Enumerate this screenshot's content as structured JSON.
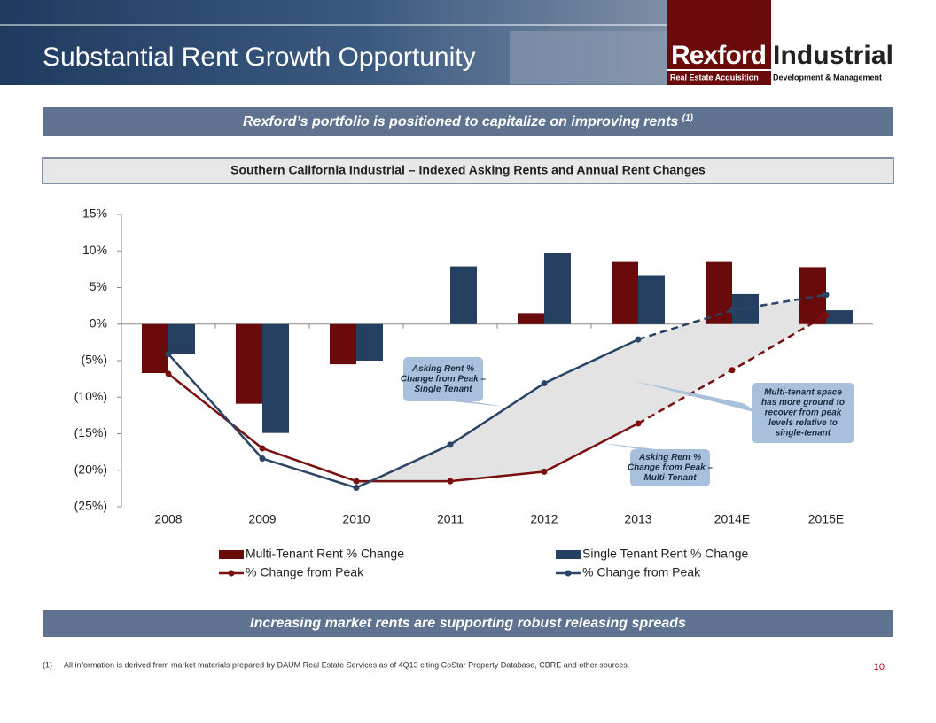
{
  "header": {
    "title": "Substantial Rent Growth Opportunity",
    "logo": {
      "name_1": "Rexford",
      "name_2": "Industrial",
      "tag_1": "Real Estate Acquisition",
      "tag_2": "Development & Management"
    }
  },
  "subtitle": {
    "text": "Rexford’s portfolio is positioned to capitalize on improving rents",
    "note": "(1)"
  },
  "chart_data": {
    "type": "bar",
    "title": "Southern California Industrial – Indexed Asking Rents and Annual Rent Changes",
    "categories": [
      "2008",
      "2009",
      "2010",
      "2011",
      "2012",
      "2013",
      "2014E",
      "2015E"
    ],
    "series": [
      {
        "name": "Multi-Tenant Rent % Change",
        "type": "bar",
        "color": "#6b0a0a",
        "values": [
          -6.7,
          -10.9,
          -5.5,
          0,
          1.5,
          8.5,
          8.5,
          7.8
        ]
      },
      {
        "name": "Single Tenant Rent % Change",
        "type": "bar",
        "color": "#243f60",
        "values": [
          -4.1,
          -14.9,
          -5.0,
          7.9,
          9.7,
          6.7,
          4.1,
          1.9
        ]
      },
      {
        "name": "% Change from Peak",
        "type": "line",
        "color": "#7a0f0f",
        "dash_from": 5,
        "values": [
          -6.8,
          -17.0,
          -21.5,
          -21.5,
          -20.2,
          -13.6,
          -6.3,
          1.2
        ]
      },
      {
        "name": "% Change from Peak",
        "type": "line",
        "color": "#2a4466",
        "dash_from": 5,
        "values": [
          -4.1,
          -18.4,
          -22.4,
          -16.5,
          -8.1,
          -2.1,
          1.9,
          4.0
        ]
      }
    ],
    "ylim": [
      -25,
      15
    ],
    "yticks": [
      {
        "value": -25,
        "label": "(25%)"
      },
      {
        "value": -20,
        "label": "(20%)"
      },
      {
        "value": -15,
        "label": "(15%)"
      },
      {
        "value": -10,
        "label": "(10%)"
      },
      {
        "value": -5,
        "label": "(5%)"
      },
      {
        "value": 0,
        "label": "0%"
      },
      {
        "value": 5,
        "label": "5%"
      },
      {
        "value": 10,
        "label": "10%"
      },
      {
        "value": 15,
        "label": "15%"
      }
    ],
    "annotations": [
      {
        "lines": [
          "Asking Rent %",
          "Change from Peak –",
          "Single Tenant"
        ]
      },
      {
        "lines": [
          "Multi-tenant space",
          "has more ground to",
          "recover from peak",
          "levels relative to",
          "single-tenant"
        ]
      },
      {
        "lines": [
          "Asking Rent %",
          "Change from Peak –",
          "Multi-Tenant"
        ]
      }
    ]
  },
  "banner": "Increasing market rents are supporting robust releasing spreads",
  "footnote": {
    "marker": "(1)",
    "text": "All information is derived from market materials prepared by DAUM Real Estate Services as of 4Q13 citing CoStar Property Database, CBRE and other sources."
  },
  "page_number": "10"
}
